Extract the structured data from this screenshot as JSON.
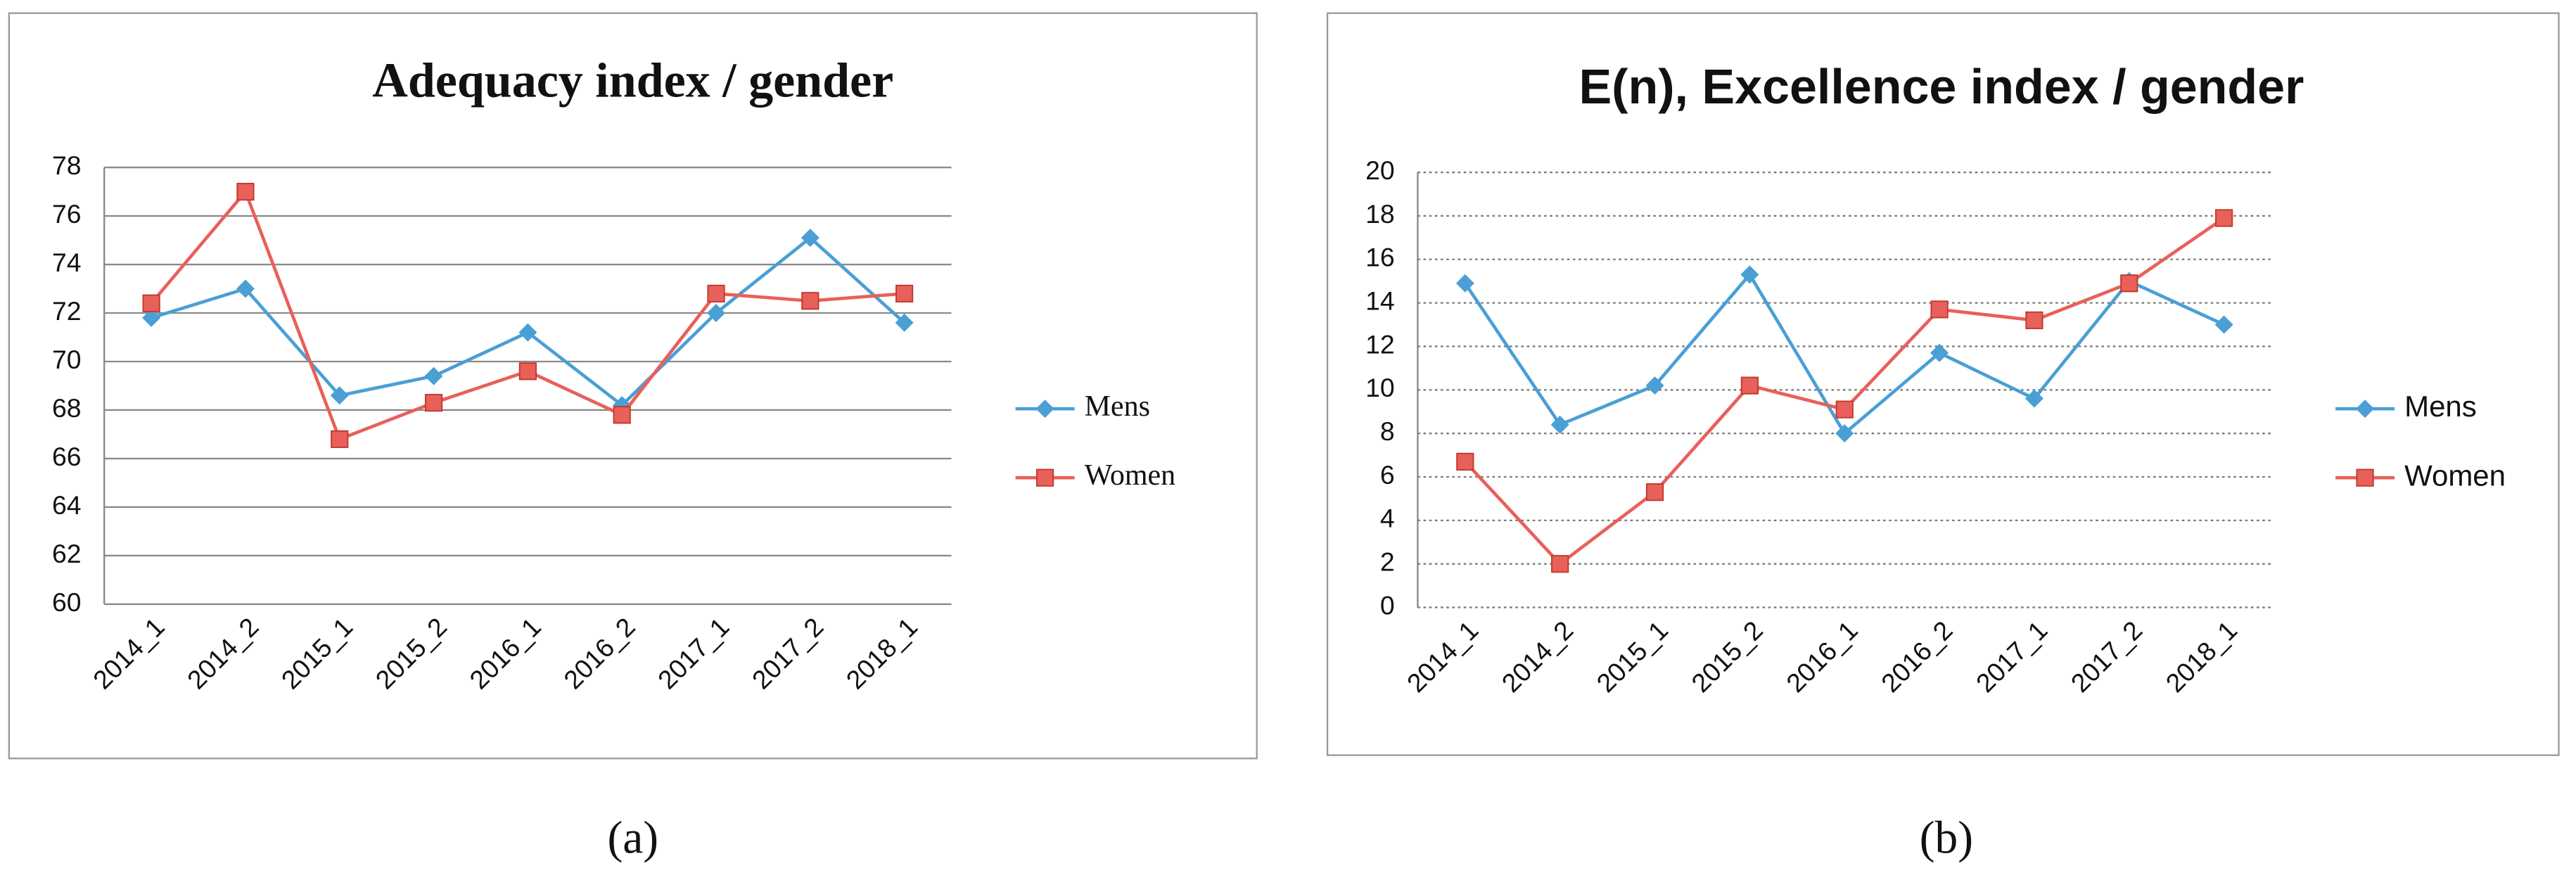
{
  "chart_data": [
    {
      "type": "line",
      "title": "Adequacy index / gender",
      "caption": "(a)",
      "categories": [
        "2014_1",
        "2014_2",
        "2015_1",
        "2015_2",
        "2016_1",
        "2016_2",
        "2017_1",
        "2017_2",
        "2018_1"
      ],
      "series": [
        {
          "name": "Mens",
          "color": "#4a9fd5",
          "marker": "diamond",
          "values": [
            71.8,
            73.0,
            68.6,
            69.4,
            71.2,
            68.2,
            72.0,
            75.1,
            71.6
          ]
        },
        {
          "name": "Women",
          "color": "#e8605a",
          "marker": "square",
          "values": [
            72.4,
            77.0,
            66.8,
            68.3,
            69.6,
            67.8,
            72.8,
            72.5,
            72.8
          ]
        }
      ],
      "ylim": [
        60,
        78
      ],
      "yticks": [
        60,
        62,
        64,
        66,
        68,
        70,
        72,
        74,
        76,
        78
      ],
      "grid": true,
      "grid_style": "solid",
      "legend": "right"
    },
    {
      "type": "line",
      "title": "E(n), Excellence index  / gender",
      "caption": "(b)",
      "categories": [
        "2014_1",
        "2014_2",
        "2015_1",
        "2015_2",
        "2016_1",
        "2016_2",
        "2017_1",
        "2017_2",
        "2018_1"
      ],
      "series": [
        {
          "name": "Mens",
          "color": "#4a9fd5",
          "marker": "diamond",
          "values": [
            14.9,
            8.4,
            10.2,
            15.3,
            8.0,
            11.7,
            9.6,
            15.0,
            13.0
          ]
        },
        {
          "name": "Women",
          "color": "#e8605a",
          "marker": "square",
          "values": [
            6.7,
            2.0,
            5.3,
            10.2,
            9.1,
            13.7,
            13.2,
            14.9,
            17.9
          ]
        }
      ],
      "ylim": [
        0,
        20
      ],
      "yticks": [
        0,
        2,
        4,
        6,
        8,
        10,
        12,
        14,
        16,
        18,
        20
      ],
      "grid": true,
      "grid_style": "dotted",
      "legend": "right"
    }
  ]
}
